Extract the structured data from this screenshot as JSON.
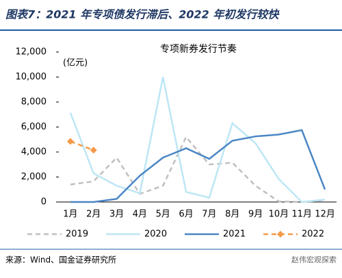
{
  "chart_data": {
    "type": "line",
    "title": "图表7：2021 年专项债发行滞后、2022 年初发行较快",
    "subtitle": "专项新券发行节奏",
    "y_label": "(亿元)",
    "source": "来源：Wind、国金证券研究所",
    "watermark": "赵伟宏观探索",
    "categories": [
      "1月",
      "2月",
      "3月",
      "4月",
      "5月",
      "6月",
      "7月",
      "8月",
      "9月",
      "10月",
      "11月",
      "12月"
    ],
    "series": [
      {
        "name": "2019",
        "color": "#bfbfbf",
        "dash": true,
        "marker": false,
        "values": [
          1400,
          1650,
          3550,
          650,
          1300,
          5200,
          3000,
          3150,
          1300,
          50,
          0,
          150
        ]
      },
      {
        "name": "2020",
        "color": "#bde6f5",
        "dash": false,
        "marker": false,
        "values": [
          7150,
          2300,
          1300,
          700,
          10000,
          800,
          350,
          6300,
          4700,
          1850,
          0,
          200
        ]
      },
      {
        "name": "2021",
        "color": "#4a86c5",
        "dash": false,
        "marker": false,
        "values": [
          0,
          0,
          250,
          2100,
          3550,
          4300,
          3450,
          4900,
          5250,
          5400,
          5750,
          1000
        ]
      },
      {
        "name": "2022",
        "color": "#f39a4a",
        "dash": true,
        "marker": true,
        "values": [
          4850,
          4150,
          null,
          null,
          null,
          null,
          null,
          null,
          null,
          null,
          null,
          null
        ]
      }
    ],
    "ylim": [
      0,
      12000
    ],
    "yticks": [
      0,
      {
        "value": 2000,
        "label": "2,000"
      },
      {
        "value": 4000,
        "label": "4,000"
      },
      {
        "value": 6000,
        "label": "6,000"
      },
      {
        "value": 8000,
        "label": "8,000"
      },
      {
        "value": 10000,
        "label": "10,000"
      },
      {
        "value": 12000,
        "label": "12,000"
      }
    ],
    "grid": false
  }
}
